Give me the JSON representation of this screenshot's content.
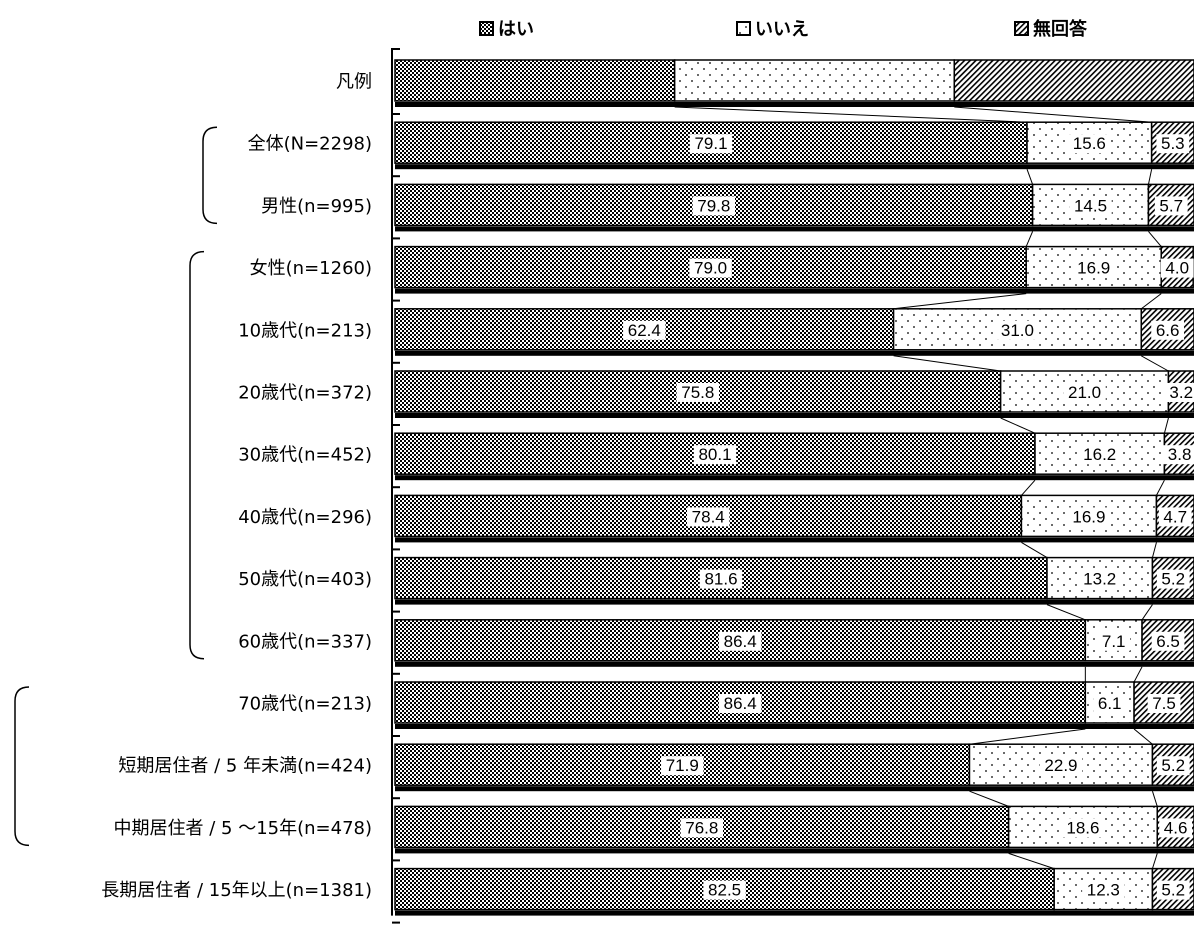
{
  "chart_data": {
    "type": "bar",
    "orientation": "horizontal",
    "stacked": true,
    "percent": true,
    "legend_position": "top",
    "grid": false,
    "xlim": [
      0,
      100
    ],
    "legend": [
      "はい",
      "いいえ",
      "無回答"
    ],
    "categories": [
      "凡例",
      "全体(N=2298)",
      "男性(n=995)",
      "女性(n=1260)",
      "10歳代(n=213)",
      "20歳代(n=372)",
      "30歳代(n=452)",
      "40歳代(n=296)",
      "50歳代(n=403)",
      "60歳代(n=337)",
      "70歳代(n=213)",
      "短期居住者 / 5 年未満(n=424)",
      "中期居住者 / 5 ～15年(n=478)",
      "長期居住者 / 15年以上(n=1381)"
    ],
    "series": [
      {
        "name": "はい",
        "values": [
          35,
          79.1,
          79.8,
          79.0,
          62.4,
          75.8,
          80.1,
          78.4,
          81.6,
          86.4,
          86.4,
          71.9,
          76.8,
          82.5
        ]
      },
      {
        "name": "いいえ",
        "values": [
          35,
          15.6,
          14.5,
          16.9,
          31.0,
          21.0,
          16.2,
          16.9,
          13.2,
          7.1,
          6.1,
          22.9,
          18.6,
          12.3
        ]
      },
      {
        "name": "無回答",
        "values": [
          30,
          5.3,
          5.7,
          4.0,
          6.6,
          3.2,
          3.8,
          4.7,
          5.2,
          6.5,
          7.5,
          5.2,
          4.6,
          5.2
        ]
      }
    ],
    "labels": [
      [
        "",
        "",
        ""
      ],
      [
        "79.1",
        "15.6",
        "5.3"
      ],
      [
        "79.8",
        "14.5",
        "5.7"
      ],
      [
        "79.0",
        "16.9",
        "4.0"
      ],
      [
        "62.4",
        "31.0",
        "6.6"
      ],
      [
        "75.8",
        "21.0",
        "3.2"
      ],
      [
        "80.1",
        "16.2",
        "3.8"
      ],
      [
        "78.4",
        "16.9",
        "4.7"
      ],
      [
        "81.6",
        "13.2",
        "5.2"
      ],
      [
        "86.4",
        "7.1",
        "6.5"
      ],
      [
        "86.4",
        "6.1",
        "7.5"
      ],
      [
        "71.9",
        "22.9",
        "5.2"
      ],
      [
        "76.8",
        "18.6",
        "4.6"
      ],
      [
        "82.5",
        "12.3",
        "5.2"
      ]
    ],
    "group_brackets": [
      [
        1,
        2
      ],
      [
        3,
        9
      ],
      [
        10,
        12
      ]
    ]
  }
}
